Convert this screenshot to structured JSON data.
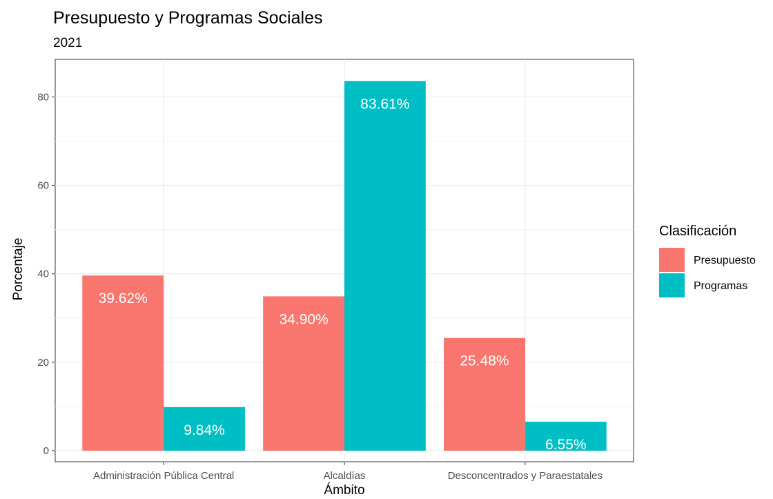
{
  "chart_data": {
    "type": "bar",
    "title": "Presupuesto y Programas Sociales",
    "subtitle": "2021",
    "xlabel": "Ámbito",
    "ylabel": "Porcentaje",
    "ylim": [
      -2.5,
      88.5
    ],
    "yticks": [
      0,
      20,
      40,
      60,
      80
    ],
    "grid": true,
    "legend_position": "right",
    "legend_title": "Clasificación",
    "categories": [
      "Administración Pública Central",
      "Alcaldías",
      "Desconcentrados y Paraestatales"
    ],
    "series": [
      {
        "name": "Presupuesto",
        "color": "#F8766D",
        "values": [
          39.62,
          34.9,
          25.48
        ],
        "labels": [
          "39.62%",
          "34.90%",
          "25.48%"
        ]
      },
      {
        "name": "Programas",
        "color": "#00BFC4",
        "values": [
          9.84,
          83.61,
          6.55
        ],
        "labels": [
          "9.84%",
          "83.61%",
          "6.55%"
        ]
      }
    ]
  }
}
